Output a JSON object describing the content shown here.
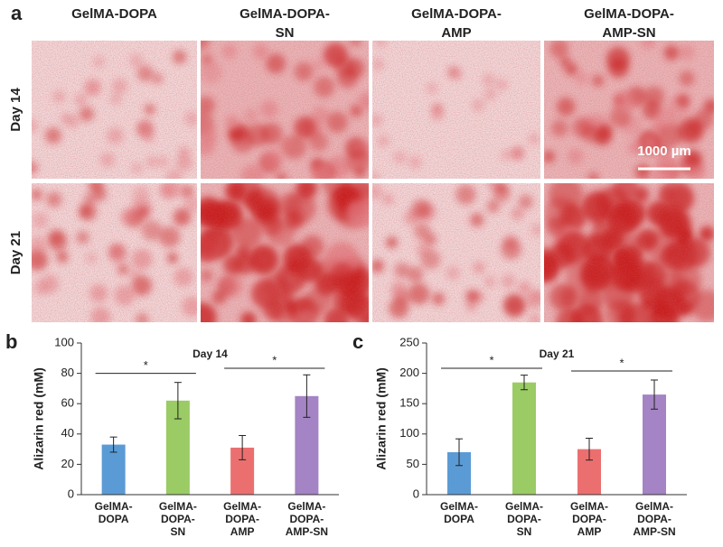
{
  "panel_a": {
    "letter": "a",
    "columns": [
      [
        "GelMA-DOPA"
      ],
      [
        "GelMA-DOPA-",
        "SN"
      ],
      [
        "GelMA-DOPA-",
        "AMP"
      ],
      [
        "GelMA-DOPA-",
        "AMP-SN"
      ]
    ],
    "rows": [
      "Day 14",
      "Day 21"
    ],
    "scale_bar": "1000 µm"
  },
  "chart_data": [
    {
      "type": "bar",
      "letter": "b",
      "title": "Day 14",
      "ylabel": "Alizarin red (mM)",
      "categories": [
        [
          "GelMA-",
          "DOPA"
        ],
        [
          "GelMA-",
          "DOPA-",
          "SN"
        ],
        [
          "GelMA-",
          "DOPA-",
          "AMP"
        ],
        [
          "GelMA-",
          "DOPA-",
          "AMP-SN"
        ]
      ],
      "values": [
        33,
        62,
        31,
        65
      ],
      "errors": [
        5,
        12,
        8,
        14
      ],
      "colors": [
        "#5b9bd5",
        "#9bcb64",
        "#ec6f6f",
        "#a484c4"
      ],
      "ylim": [
        0,
        100
      ],
      "yticks": [
        0,
        20,
        40,
        60,
        80,
        100
      ],
      "significance": [
        {
          "label": "*",
          "pair": [
            0,
            1
          ]
        },
        {
          "label": "*",
          "pair": [
            2,
            3
          ]
        }
      ]
    },
    {
      "type": "bar",
      "letter": "c",
      "title": "Day 21",
      "ylabel": "Alizarin red (mM)",
      "categories": [
        [
          "GelMA-",
          "DOPA"
        ],
        [
          "GelMA-",
          "DOPA-",
          "SN"
        ],
        [
          "GelMA-",
          "DOPA-",
          "AMP"
        ],
        [
          "GelMA-",
          "DOPA-",
          "AMP-SN"
        ]
      ],
      "values": [
        70,
        185,
        75,
        165
      ],
      "errors": [
        22,
        12,
        18,
        24
      ],
      "colors": [
        "#5b9bd5",
        "#9bcb64",
        "#ec6f6f",
        "#a484c4"
      ],
      "ylim": [
        0,
        250
      ],
      "yticks": [
        0,
        50,
        100,
        150,
        200,
        250
      ],
      "significance": [
        {
          "label": "*",
          "pair": [
            0,
            1
          ]
        },
        {
          "label": "*",
          "pair": [
            2,
            3
          ]
        }
      ]
    }
  ]
}
